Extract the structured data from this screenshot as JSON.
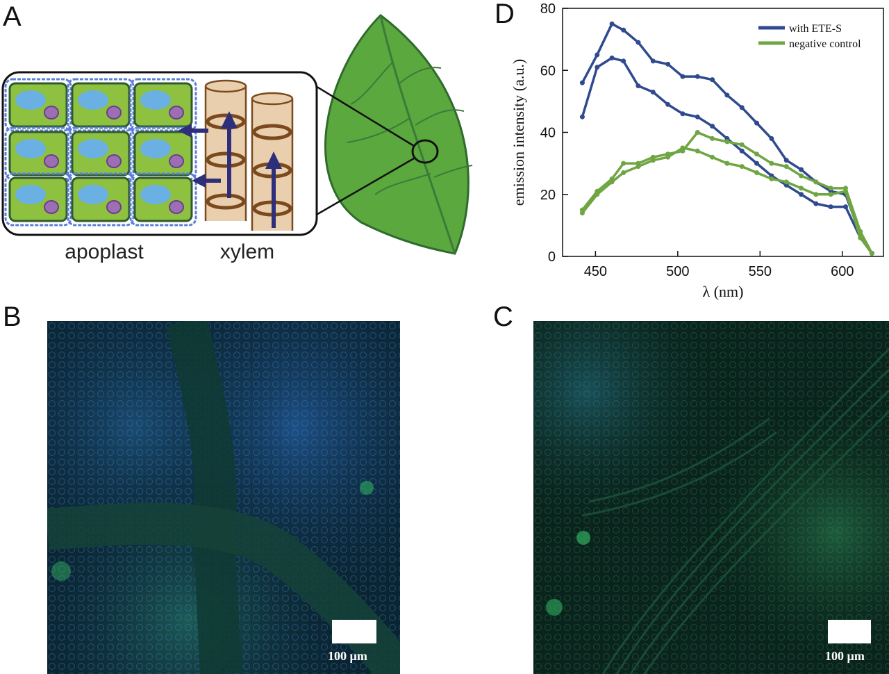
{
  "panels": {
    "a": {
      "letter": "A",
      "labels": {
        "apoplast": "apoplast",
        "xylem": "xylem"
      }
    },
    "b": {
      "letter": "B",
      "scale_bar": "100 µm"
    },
    "c": {
      "letter": "C",
      "scale_bar": "100 µm"
    },
    "d": {
      "letter": "D"
    }
  },
  "colors": {
    "cell_fill": "#8dc13f",
    "cell_border": "#2f5a2f",
    "vacuole": "#6ab0e2",
    "nucleus": "#9c6fb5",
    "apoplast_outline": "#5b7fd6",
    "xylem_fill": "#e9cfae",
    "xylem_stroke": "#7a4a1e",
    "arrow": "#2e2f7a",
    "leaf_fill": "#5aa83e",
    "leaf_vein": "#3c7a3a",
    "series_ete": "#2f4a8f",
    "series_neg": "#6fa542"
  },
  "chart_data": {
    "type": "line",
    "xlabel": "λ (nm)",
    "ylabel": "emission intensity (a.u.)",
    "xlim": [
      430,
      625
    ],
    "ylim": [
      0,
      80
    ],
    "xticks": [
      450,
      500,
      550,
      600
    ],
    "yticks": [
      0,
      20,
      40,
      60,
      80
    ],
    "legend_position": "top-right",
    "series": [
      {
        "name": "with ETE-S",
        "color": "#2f4a8f",
        "x": [
          442,
          451,
          460,
          467,
          476,
          485,
          494,
          503,
          512,
          521,
          530,
          539,
          548,
          557,
          566,
          575,
          584,
          593,
          602,
          611,
          618
        ],
        "y": [
          56,
          65,
          75,
          73,
          69,
          63,
          62,
          58,
          58,
          57,
          52,
          48,
          43,
          38,
          31,
          28,
          24,
          21,
          20,
          7,
          1
        ]
      },
      {
        "name": "",
        "color": "#2f4a8f",
        "x": [
          442,
          451,
          460,
          467,
          476,
          485,
          494,
          503,
          512,
          521,
          530,
          539,
          548,
          557,
          566,
          575,
          584,
          593,
          602,
          611,
          618
        ],
        "y": [
          45,
          61,
          64,
          63,
          55,
          53,
          49,
          46,
          45,
          42,
          38,
          34,
          30,
          26,
          23,
          20,
          17,
          16,
          16,
          6,
          1
        ]
      },
      {
        "name": "negative control",
        "color": "#6fa542",
        "x": [
          442,
          451,
          460,
          467,
          476,
          485,
          494,
          503,
          512,
          521,
          530,
          539,
          548,
          557,
          566,
          575,
          584,
          593,
          602,
          611,
          618
        ],
        "y": [
          15,
          21,
          25,
          30,
          30,
          32,
          33,
          34,
          40,
          38,
          37,
          36,
          33,
          30,
          29,
          26,
          24,
          22,
          22,
          8,
          1
        ]
      },
      {
        "name": "",
        "color": "#6fa542",
        "x": [
          442,
          451,
          460,
          467,
          476,
          485,
          494,
          503,
          512,
          521,
          530,
          539,
          548,
          557,
          566,
          575,
          584,
          593,
          602,
          611,
          618
        ],
        "y": [
          14,
          20,
          24,
          27,
          29,
          31,
          32,
          35,
          34,
          32,
          30,
          29,
          27,
          25,
          24,
          22,
          20,
          20,
          21,
          6,
          1
        ]
      }
    ]
  }
}
